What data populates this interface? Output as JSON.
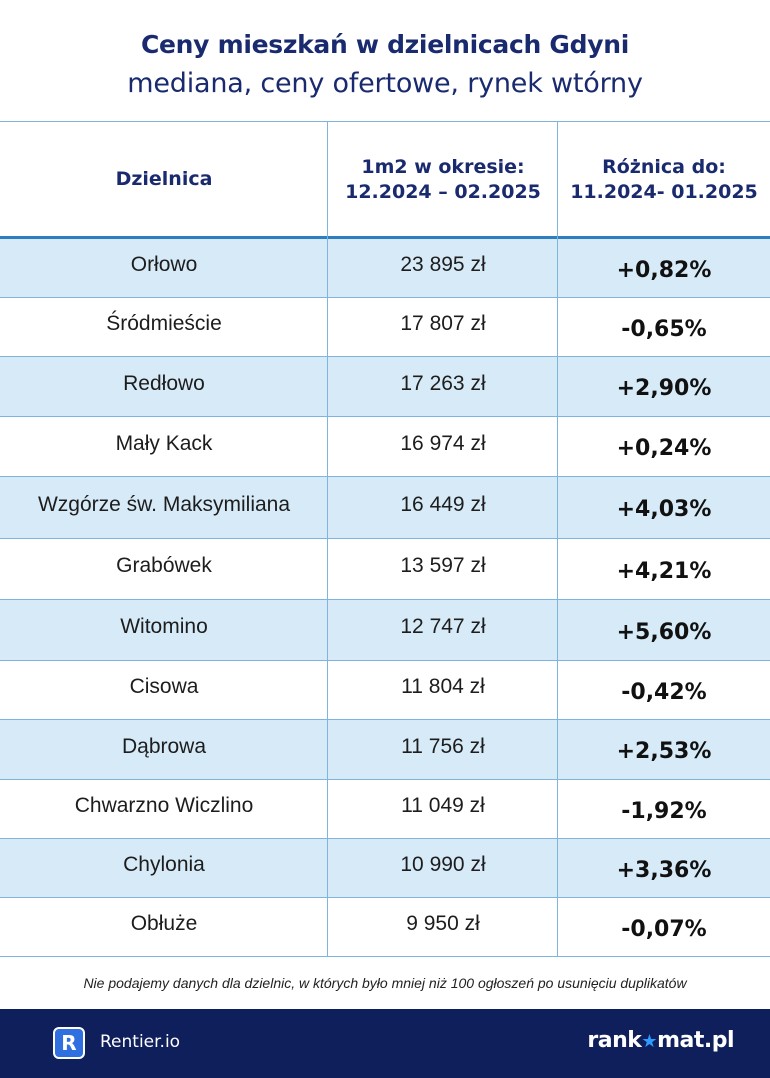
{
  "header": {
    "title": "Ceny mieszkań w dzielnicach Gdyni",
    "subtitle": "mediana, ceny ofertowe, rynek wtórny"
  },
  "table": {
    "columns": [
      {
        "line1": "Dzielnica",
        "line2": ""
      },
      {
        "line1": "1m2 w okresie:",
        "line2": "12.2024 – 02.2025"
      },
      {
        "line1": "Różnica do:",
        "line2": "11.2024- 01.2025"
      }
    ]
  },
  "chart_data": {
    "type": "table",
    "title": "Ceny mieszkań w dzielnicach Gdyni",
    "subtitle": "mediana, ceny ofertowe, rynek wtórny",
    "headers": [
      "Dzielnica",
      "1m2 w okresie: 12.2024 – 02.2025",
      "Różnica do: 11.2024- 01.2025"
    ],
    "rows": [
      {
        "district": "Orłowo",
        "price": "23 895 zł",
        "diff": "+0,82%"
      },
      {
        "district": "Śródmieście",
        "price": "17 807  zł",
        "diff": "-0,65%"
      },
      {
        "district": "Redłowo",
        "price": "17 263 zł",
        "diff": "+2,90%"
      },
      {
        "district": "Mały Kack",
        "price": "16 974 zł",
        "diff": "+0,24%"
      },
      {
        "district": "Wzgórze św. Maksymiliana",
        "price": "16 449 zł",
        "diff": "+4,03%"
      },
      {
        "district": "Grabówek",
        "price": "13 597 zł",
        "diff": "+4,21%"
      },
      {
        "district": "Witomino",
        "price": "12 747 zł",
        "diff": "+5,60%"
      },
      {
        "district": "Cisowa",
        "price": "11 804 zł",
        "diff": "-0,42%"
      },
      {
        "district": "Dąbrowa",
        "price": "11 756 zł",
        "diff": "+2,53%"
      },
      {
        "district": "Chwarzno Wiczlino",
        "price": "11 049 zł",
        "diff": "-1,92%"
      },
      {
        "district": "Chylonia",
        "price": "10 990 zł",
        "diff": "+3,36%"
      },
      {
        "district": "Obłuże",
        "price": "9 950 zł",
        "diff": "-0,07%"
      }
    ]
  },
  "footnote": "Nie podajemy danych dla dzielnic, w których było mniej niż 100 ogłoszeń po usunięciu duplikatów",
  "footer": {
    "left_logo_letter": "R",
    "left_brand": "Rentier.io",
    "right_brand_part1": "rank",
    "right_brand_star": "★",
    "right_brand_part2": "mat.pl"
  },
  "colors": {
    "title": "#1a2a6e",
    "row_alt": "#d6eaf8",
    "grid": "#7fb4dc",
    "header_rule": "#2e7fc2",
    "footer_bg": "#0f1f5c"
  }
}
